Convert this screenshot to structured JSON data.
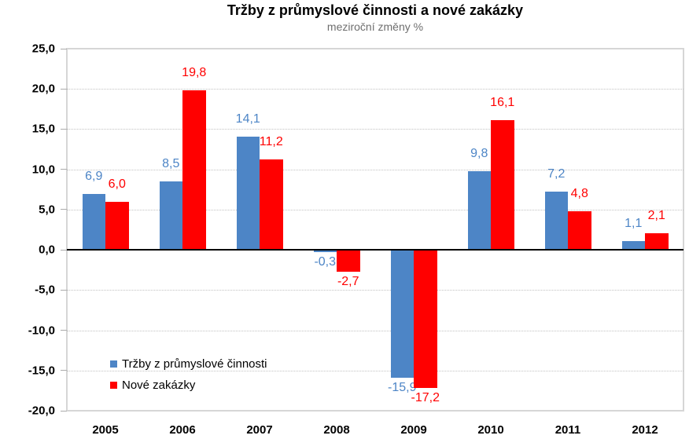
{
  "chart_data": {
    "type": "bar",
    "title": "Tržby z průmyslové činnosti a nové zakázky",
    "subtitle": "meziroční změny %",
    "categories": [
      "2005",
      "2006",
      "2007",
      "2008",
      "2009",
      "2010",
      "2011",
      "2012"
    ],
    "series": [
      {
        "name": "Tržby z průmyslové činnosti",
        "color": "#4D85C6",
        "values": [
          6.9,
          8.5,
          14.1,
          -0.3,
          -15.9,
          9.8,
          7.2,
          1.1
        ],
        "labels": [
          "6,9",
          "8,5",
          "14,1",
          "-0,3",
          "-15,9",
          "9,8",
          "7,2",
          "1,1"
        ]
      },
      {
        "name": "Nové zakázky",
        "color": "#FF0000",
        "values": [
          6.0,
          19.8,
          11.2,
          -2.7,
          -17.2,
          16.1,
          4.8,
          2.1
        ],
        "labels": [
          "6,0",
          "19,8",
          "11,2",
          "-2,7",
          "-17,2",
          "16,1",
          "4,8",
          "2,1"
        ]
      }
    ],
    "ylim": [
      -20,
      25
    ],
    "y_tick_step": 5,
    "y_tick_labels": [
      "25,0",
      "20,0",
      "15,0",
      "10,0",
      "5,0",
      "0,0",
      "-5,0",
      "-10,0",
      "-15,0",
      "-20,0"
    ],
    "grid": "horizontal-dotted",
    "legend_position": "inside-lower-left",
    "zero_line_color": "#000000"
  }
}
